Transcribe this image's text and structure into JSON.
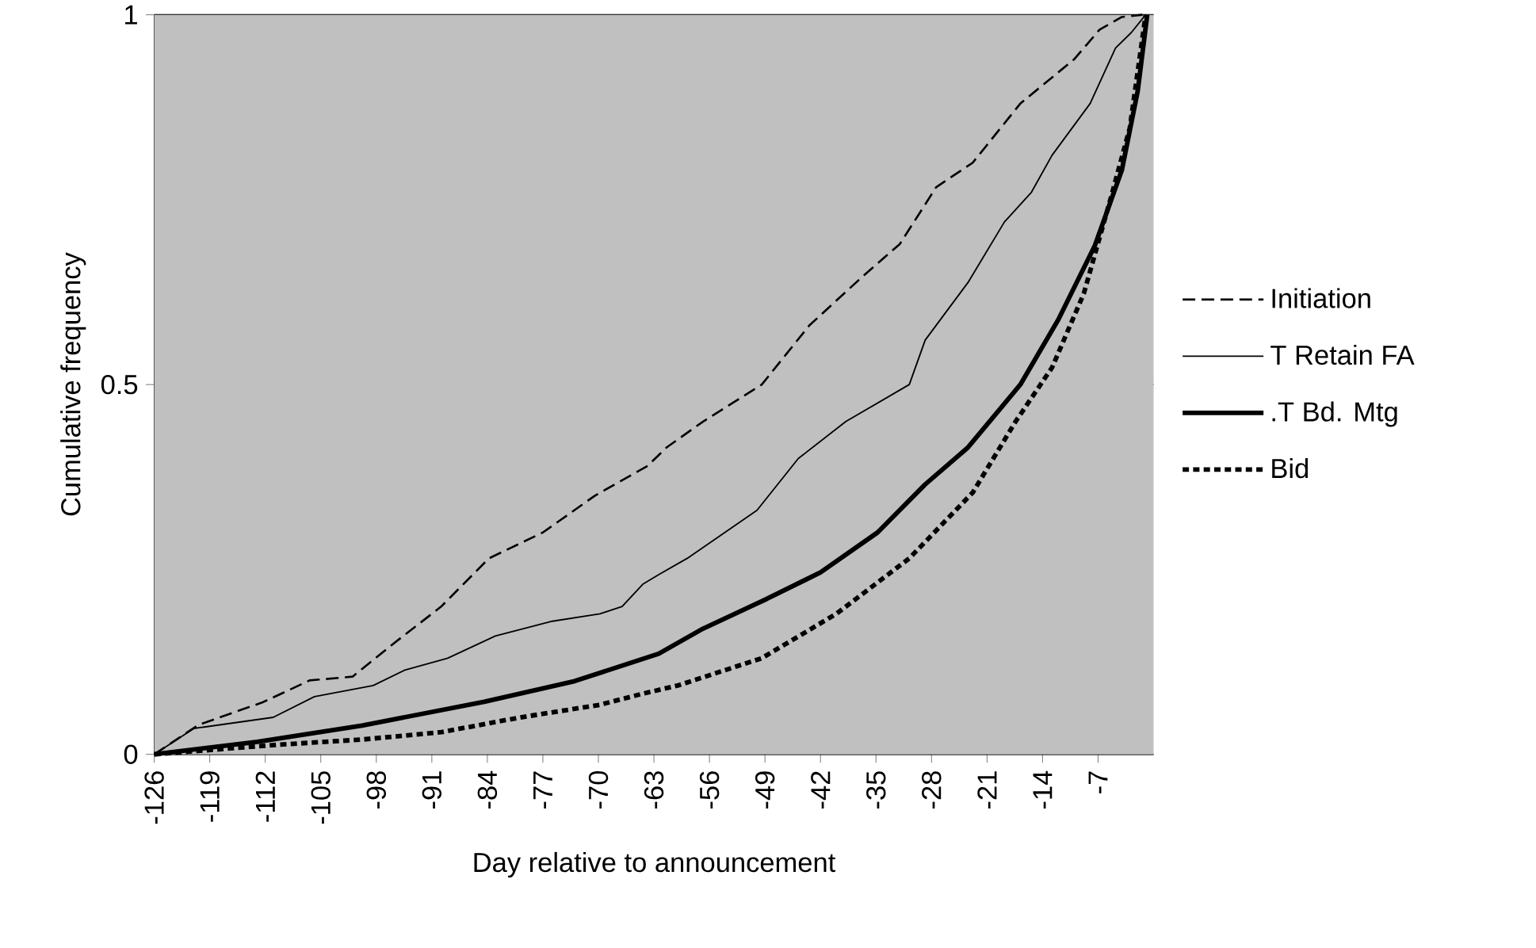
{
  "chart_data": {
    "type": "line",
    "xlabel": "Day relative to announcement",
    "ylabel": "Cumulative frequency",
    "xlim": [
      -126,
      0
    ],
    "xticks": [
      -126,
      -119,
      -112,
      -105,
      -98,
      -91,
      -84,
      -77,
      -70,
      -63,
      -56,
      -49,
      -42,
      -35,
      -28,
      -21,
      -14,
      -7
    ],
    "ylim": [
      0,
      1
    ],
    "yticks": [
      0,
      0.5,
      1
    ],
    "grid": "y",
    "legend": "right",
    "marker": "none",
    "series": [
      {
        "name": "Initiation",
        "color": "#000000",
        "line_style": "dashed",
        "x": [
          -126,
          -120.4,
          -112.4,
          -106.4,
          -101,
          -95.8,
          -89.8,
          -83.8,
          -77,
          -70.4,
          -63.8,
          -61.4,
          -56.8,
          -49.4,
          -43.4,
          -36.8,
          -32,
          -27.4,
          -22.8,
          -16.8,
          -10,
          -6.8,
          -4,
          -1.4
        ],
        "values": [
          0,
          0.04,
          0.07,
          0.1,
          0.105,
          0.15,
          0.2,
          0.265,
          0.3,
          0.35,
          0.39,
          0.415,
          0.45,
          0.5,
          0.58,
          0.645,
          0.69,
          0.767,
          0.8,
          0.88,
          0.94,
          0.98,
          0.997,
          1
        ]
      },
      {
        "name": "T Retain FA",
        "color": "#000000",
        "line_style": "solid",
        "x": [
          -126,
          -121,
          -111,
          -105.8,
          -98.4,
          -94.4,
          -89,
          -83,
          -75.8,
          -69.8,
          -67,
          -64.4,
          -62.4,
          -58.8,
          -50,
          -44.8,
          -38.8,
          -30.8,
          -28.8,
          -23.4,
          -18.8,
          -15.4,
          -12.8,
          -8,
          -4.8,
          -2.8,
          -1
        ],
        "values": [
          0,
          0.035,
          0.05,
          0.078,
          0.093,
          0.114,
          0.13,
          0.16,
          0.18,
          0.19,
          0.2,
          0.23,
          0.243,
          0.265,
          0.33,
          0.4,
          0.45,
          0.5,
          0.56,
          0.638,
          0.72,
          0.76,
          0.81,
          0.88,
          0.955,
          0.976,
          1
        ]
      },
      {
        "name": ".T Bd. Mtg",
        "color": "#000000",
        "line_style": "solid",
        "x": [
          -126,
          -113,
          -99.8,
          -84.4,
          -73,
          -62.4,
          -56.8,
          -48.8,
          -42,
          -34.8,
          -28.8,
          -23.4,
          -16.8,
          -12,
          -7.4,
          -4,
          -2,
          -0.8
        ],
        "values": [
          0,
          0.017,
          0.039,
          0.071,
          0.099,
          0.136,
          0.17,
          0.21,
          0.246,
          0.3,
          0.365,
          0.415,
          0.5,
          0.588,
          0.688,
          0.79,
          0.897,
          1
        ]
      },
      {
        "name": "Bid",
        "color": "#000000",
        "line_style": "dotted",
        "x": [
          -126,
          -110.4,
          -99.8,
          -89.8,
          -79.8,
          -69.8,
          -64.4,
          -60,
          -49.4,
          -40,
          -30.8,
          -22.8,
          -17.4,
          -12.8,
          -8.8,
          -5.4,
          -3,
          -1
        ],
        "values": [
          0,
          0.013,
          0.02,
          0.03,
          0.05,
          0.067,
          0.082,
          0.093,
          0.13,
          0.19,
          0.265,
          0.354,
          0.45,
          0.523,
          0.623,
          0.752,
          0.847,
          1
        ]
      }
    ]
  }
}
